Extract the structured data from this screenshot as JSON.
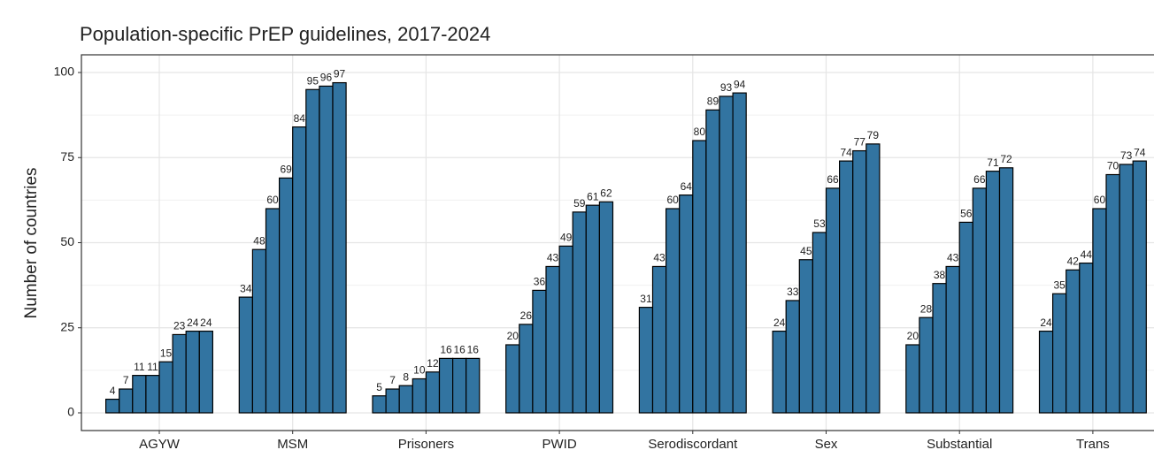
{
  "chart_data": {
    "type": "bar",
    "title": "Population-specific PrEP guidelines, 2017-2024",
    "y_label": "Number of countries",
    "categories": [
      "AGYW",
      "MSM",
      "Prisoners",
      "PWID",
      "Serodiscordant",
      "Sex",
      "Substantial",
      "Trans"
    ],
    "series": [
      {
        "color": "#3274a1",
        "values": [
          4,
          34,
          5,
          20,
          31,
          24,
          20,
          24
        ]
      },
      {
        "color": "#3274a1",
        "values": [
          7,
          48,
          7,
          26,
          43,
          33,
          28,
          35
        ]
      },
      {
        "color": "#3274a1",
        "values": [
          11,
          60,
          8,
          36,
          60,
          45,
          38,
          42
        ]
      },
      {
        "color": "#3274a1",
        "values": [
          11,
          69,
          10,
          43,
          64,
          53,
          43,
          44
        ]
      },
      {
        "color": "#3274a1",
        "values": [
          15,
          84,
          12,
          49,
          80,
          66,
          56,
          60
        ]
      },
      {
        "color": "#3274a1",
        "values": [
          23,
          95,
          16,
          59,
          89,
          74,
          66,
          70
        ]
      },
      {
        "color": "#3274a1",
        "values": [
          24,
          96,
          16,
          61,
          93,
          77,
          71,
          73
        ]
      },
      {
        "color": "#3274a1",
        "values": [
          24,
          97,
          16,
          62,
          94,
          79,
          72,
          74
        ]
      }
    ],
    "ylim": [
      -5.2,
      105.2
    ],
    "yticks": [
      0,
      25,
      50,
      75,
      100
    ],
    "grid": true
  }
}
